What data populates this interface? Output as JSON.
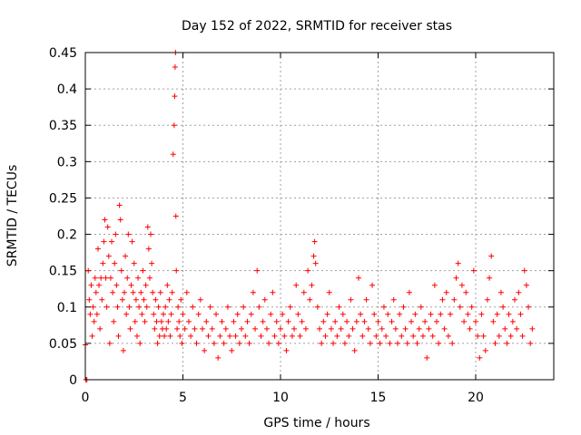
{
  "chart_data": {
    "type": "scatter",
    "title": "Day 152 of 2022, SRMTID for receiver stas",
    "xlabel": "GPS time / hours",
    "ylabel": "SRMTID / TECUs",
    "xlim": [
      0,
      24
    ],
    "ylim": [
      0,
      0.45
    ],
    "xticks": [
      0,
      5,
      10,
      15,
      20
    ],
    "xtick_labels": [
      "0",
      "5",
      "10",
      "15",
      "20"
    ],
    "yticks": [
      0,
      0.05,
      0.1,
      0.15,
      0.2,
      0.25,
      0.3,
      0.35,
      0.4,
      0.45
    ],
    "ytick_labels": [
      "0",
      "0.05",
      "0.1",
      "0.15",
      "0.2",
      "0.25",
      "0.3",
      "0.35",
      "0.4",
      "0.45"
    ],
    "grid": true,
    "marker": "+",
    "color": "#ff0000",
    "points": [
      [
        0.0,
        0.048
      ],
      [
        0.03,
        0.0
      ],
      [
        0.08,
        0.0
      ],
      [
        0.15,
        0.15
      ],
      [
        0.2,
        0.11
      ],
      [
        0.25,
        0.09
      ],
      [
        0.3,
        0.13
      ],
      [
        0.35,
        0.06
      ],
      [
        0.4,
        0.1
      ],
      [
        0.45,
        0.08
      ],
      [
        0.5,
        0.14
      ],
      [
        0.55,
        0.12
      ],
      [
        0.6,
        0.09
      ],
      [
        0.65,
        0.18
      ],
      [
        0.7,
        0.13
      ],
      [
        0.75,
        0.07
      ],
      [
        0.8,
        0.14
      ],
      [
        0.85,
        0.11
      ],
      [
        0.9,
        0.16
      ],
      [
        0.95,
        0.19
      ],
      [
        1.0,
        0.22
      ],
      [
        1.05,
        0.14
      ],
      [
        1.1,
        0.1
      ],
      [
        1.15,
        0.21
      ],
      [
        1.2,
        0.17
      ],
      [
        1.25,
        0.05
      ],
      [
        1.3,
        0.14
      ],
      [
        1.35,
        0.19
      ],
      [
        1.4,
        0.12
      ],
      [
        1.45,
        0.08
      ],
      [
        1.5,
        0.16
      ],
      [
        1.55,
        0.2
      ],
      [
        1.6,
        0.13
      ],
      [
        1.65,
        0.1
      ],
      [
        1.7,
        0.06
      ],
      [
        1.75,
        0.24
      ],
      [
        1.8,
        0.22
      ],
      [
        1.85,
        0.15
      ],
      [
        1.9,
        0.11
      ],
      [
        1.95,
        0.04
      ],
      [
        2.0,
        0.12
      ],
      [
        2.05,
        0.17
      ],
      [
        2.1,
        0.09
      ],
      [
        2.15,
        0.14
      ],
      [
        2.2,
        0.2
      ],
      [
        2.25,
        0.1
      ],
      [
        2.3,
        0.07
      ],
      [
        2.35,
        0.13
      ],
      [
        2.4,
        0.19
      ],
      [
        2.45,
        0.12
      ],
      [
        2.5,
        0.16
      ],
      [
        2.55,
        0.08
      ],
      [
        2.6,
        0.11
      ],
      [
        2.65,
        0.06
      ],
      [
        2.7,
        0.14
      ],
      [
        2.75,
        0.1
      ],
      [
        2.8,
        0.05
      ],
      [
        2.85,
        0.12
      ],
      [
        2.9,
        0.09
      ],
      [
        2.95,
        0.15
      ],
      [
        3.0,
        0.11
      ],
      [
        3.05,
        0.08
      ],
      [
        3.1,
        0.13
      ],
      [
        3.15,
        0.1
      ],
      [
        3.2,
        0.21
      ],
      [
        3.25,
        0.18
      ],
      [
        3.3,
        0.14
      ],
      [
        3.35,
        0.2
      ],
      [
        3.4,
        0.16
      ],
      [
        3.45,
        0.12
      ],
      [
        3.5,
        0.09
      ],
      [
        3.55,
        0.07
      ],
      [
        3.6,
        0.11
      ],
      [
        3.65,
        0.08
      ],
      [
        3.7,
        0.05
      ],
      [
        3.75,
        0.1
      ],
      [
        3.8,
        0.06
      ],
      [
        3.85,
        0.12
      ],
      [
        3.9,
        0.08
      ],
      [
        3.95,
        0.07
      ],
      [
        4.0,
        0.09
      ],
      [
        4.05,
        0.06
      ],
      [
        4.1,
        0.1
      ],
      [
        4.15,
        0.07
      ],
      [
        4.2,
        0.13
      ],
      [
        4.25,
        0.08
      ],
      [
        4.3,
        0.11
      ],
      [
        4.35,
        0.06
      ],
      [
        4.4,
        0.09
      ],
      [
        4.45,
        0.12
      ],
      [
        4.5,
        0.31
      ],
      [
        4.55,
        0.35
      ],
      [
        4.58,
        0.39
      ],
      [
        4.6,
        0.43
      ],
      [
        4.62,
        0.45
      ],
      [
        4.64,
        0.225
      ],
      [
        4.66,
        0.15
      ],
      [
        4.7,
        0.07
      ],
      [
        4.75,
        0.1
      ],
      [
        4.8,
        0.08
      ],
      [
        4.85,
        0.06
      ],
      [
        4.9,
        0.11
      ],
      [
        4.95,
        0.05
      ],
      [
        5.0,
        0.09
      ],
      [
        5.1,
        0.07
      ],
      [
        5.2,
        0.12
      ],
      [
        5.3,
        0.08
      ],
      [
        5.4,
        0.06
      ],
      [
        5.5,
        0.1
      ],
      [
        5.6,
        0.07
      ],
      [
        5.7,
        0.05
      ],
      [
        5.8,
        0.09
      ],
      [
        5.9,
        0.11
      ],
      [
        6.0,
        0.07
      ],
      [
        6.1,
        0.04
      ],
      [
        6.2,
        0.08
      ],
      [
        6.3,
        0.06
      ],
      [
        6.4,
        0.1
      ],
      [
        6.5,
        0.07
      ],
      [
        6.6,
        0.05
      ],
      [
        6.7,
        0.09
      ],
      [
        6.8,
        0.03
      ],
      [
        6.9,
        0.06
      ],
      [
        7.0,
        0.08
      ],
      [
        7.1,
        0.05
      ],
      [
        7.2,
        0.07
      ],
      [
        7.3,
        0.1
      ],
      [
        7.4,
        0.06
      ],
      [
        7.5,
        0.04
      ],
      [
        7.6,
        0.08
      ],
      [
        7.7,
        0.06
      ],
      [
        7.8,
        0.09
      ],
      [
        7.9,
        0.05
      ],
      [
        8.0,
        0.07
      ],
      [
        8.1,
        0.1
      ],
      [
        8.2,
        0.06
      ],
      [
        8.3,
        0.08
      ],
      [
        8.4,
        0.05
      ],
      [
        8.5,
        0.09
      ],
      [
        8.6,
        0.12
      ],
      [
        8.7,
        0.07
      ],
      [
        8.8,
        0.15
      ],
      [
        8.9,
        0.1
      ],
      [
        9.0,
        0.06
      ],
      [
        9.1,
        0.08
      ],
      [
        9.2,
        0.11
      ],
      [
        9.3,
        0.07
      ],
      [
        9.4,
        0.05
      ],
      [
        9.5,
        0.09
      ],
      [
        9.6,
        0.12
      ],
      [
        9.7,
        0.06
      ],
      [
        9.8,
        0.08
      ],
      [
        9.9,
        0.05
      ],
      [
        10.0,
        0.07
      ],
      [
        10.1,
        0.09
      ],
      [
        10.2,
        0.06
      ],
      [
        10.3,
        0.04
      ],
      [
        10.4,
        0.08
      ],
      [
        10.5,
        0.1
      ],
      [
        10.6,
        0.06
      ],
      [
        10.7,
        0.07
      ],
      [
        10.8,
        0.13
      ],
      [
        10.9,
        0.09
      ],
      [
        11.0,
        0.06
      ],
      [
        11.1,
        0.08
      ],
      [
        11.2,
        0.12
      ],
      [
        11.3,
        0.07
      ],
      [
        11.4,
        0.15
      ],
      [
        11.5,
        0.11
      ],
      [
        11.6,
        0.13
      ],
      [
        11.7,
        0.17
      ],
      [
        11.75,
        0.19
      ],
      [
        11.8,
        0.16
      ],
      [
        11.9,
        0.1
      ],
      [
        12.0,
        0.07
      ],
      [
        12.1,
        0.05
      ],
      [
        12.2,
        0.08
      ],
      [
        12.3,
        0.06
      ],
      [
        12.4,
        0.09
      ],
      [
        12.5,
        0.12
      ],
      [
        12.6,
        0.07
      ],
      [
        12.7,
        0.05
      ],
      [
        12.8,
        0.08
      ],
      [
        12.9,
        0.06
      ],
      [
        13.0,
        0.1
      ],
      [
        13.1,
        0.07
      ],
      [
        13.2,
        0.09
      ],
      [
        13.3,
        0.05
      ],
      [
        13.4,
        0.08
      ],
      [
        13.5,
        0.06
      ],
      [
        13.6,
        0.11
      ],
      [
        13.7,
        0.07
      ],
      [
        13.8,
        0.04
      ],
      [
        13.9,
        0.08
      ],
      [
        14.0,
        0.14
      ],
      [
        14.1,
        0.09
      ],
      [
        14.2,
        0.06
      ],
      [
        14.3,
        0.08
      ],
      [
        14.4,
        0.11
      ],
      [
        14.5,
        0.07
      ],
      [
        14.6,
        0.05
      ],
      [
        14.7,
        0.13
      ],
      [
        14.8,
        0.09
      ],
      [
        14.9,
        0.06
      ],
      [
        15.0,
        0.08
      ],
      [
        15.1,
        0.05
      ],
      [
        15.2,
        0.07
      ],
      [
        15.3,
        0.1
      ],
      [
        15.4,
        0.06
      ],
      [
        15.5,
        0.09
      ],
      [
        15.6,
        0.05
      ],
      [
        15.7,
        0.08
      ],
      [
        15.8,
        0.11
      ],
      [
        15.9,
        0.07
      ],
      [
        16.0,
        0.05
      ],
      [
        16.1,
        0.09
      ],
      [
        16.2,
        0.06
      ],
      [
        16.3,
        0.1
      ],
      [
        16.4,
        0.07
      ],
      [
        16.5,
        0.05
      ],
      [
        16.6,
        0.12
      ],
      [
        16.7,
        0.08
      ],
      [
        16.8,
        0.06
      ],
      [
        16.9,
        0.09
      ],
      [
        17.0,
        0.05
      ],
      [
        17.1,
        0.07
      ],
      [
        17.2,
        0.1
      ],
      [
        17.3,
        0.06
      ],
      [
        17.4,
        0.08
      ],
      [
        17.5,
        0.03
      ],
      [
        17.6,
        0.07
      ],
      [
        17.7,
        0.09
      ],
      [
        17.8,
        0.06
      ],
      [
        17.9,
        0.13
      ],
      [
        18.0,
        0.08
      ],
      [
        18.1,
        0.05
      ],
      [
        18.2,
        0.09
      ],
      [
        18.3,
        0.11
      ],
      [
        18.4,
        0.07
      ],
      [
        18.5,
        0.12
      ],
      [
        18.6,
        0.06
      ],
      [
        18.7,
        0.09
      ],
      [
        18.8,
        0.05
      ],
      [
        18.9,
        0.11
      ],
      [
        19.0,
        0.14
      ],
      [
        19.1,
        0.16
      ],
      [
        19.2,
        0.1
      ],
      [
        19.3,
        0.13
      ],
      [
        19.4,
        0.08
      ],
      [
        19.5,
        0.12
      ],
      [
        19.6,
        0.09
      ],
      [
        19.7,
        0.07
      ],
      [
        19.8,
        0.1
      ],
      [
        19.9,
        0.15
      ],
      [
        20.0,
        0.08
      ],
      [
        20.1,
        0.06
      ],
      [
        20.2,
        0.03
      ],
      [
        20.3,
        0.09
      ],
      [
        20.4,
        0.06
      ],
      [
        20.5,
        0.04
      ],
      [
        20.6,
        0.11
      ],
      [
        20.7,
        0.14
      ],
      [
        20.8,
        0.17
      ],
      [
        20.9,
        0.08
      ],
      [
        21.0,
        0.05
      ],
      [
        21.1,
        0.09
      ],
      [
        21.2,
        0.06
      ],
      [
        21.3,
        0.12
      ],
      [
        21.4,
        0.1
      ],
      [
        21.5,
        0.07
      ],
      [
        21.6,
        0.05
      ],
      [
        21.7,
        0.09
      ],
      [
        21.8,
        0.06
      ],
      [
        21.9,
        0.08
      ],
      [
        22.0,
        0.11
      ],
      [
        22.1,
        0.07
      ],
      [
        22.2,
        0.12
      ],
      [
        22.3,
        0.09
      ],
      [
        22.4,
        0.06
      ],
      [
        22.5,
        0.15
      ],
      [
        22.6,
        0.13
      ],
      [
        22.7,
        0.1
      ],
      [
        22.8,
        0.05
      ],
      [
        22.9,
        0.07
      ]
    ]
  }
}
